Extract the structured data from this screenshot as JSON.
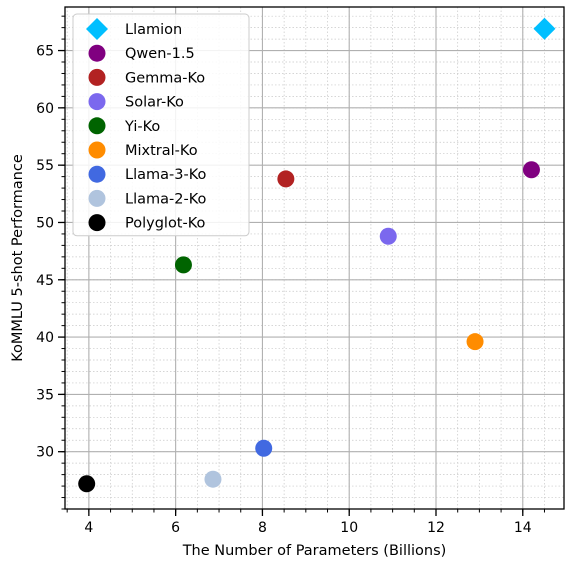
{
  "chart_data": {
    "type": "scatter",
    "title": "",
    "xlabel": "The Number of Parameters (Billions)",
    "ylabel": "KoMMLU 5-shot Performance",
    "xlim": [
      3.45,
      14.95
    ],
    "ylim": [
      25.0,
      68.8
    ],
    "x_ticks": [
      4,
      6,
      8,
      10,
      12,
      14
    ],
    "y_ticks": [
      30,
      35,
      40,
      45,
      50,
      55,
      60,
      65
    ],
    "grid": true,
    "legend_position": "top-left",
    "series": [
      {
        "name": "Llamion",
        "x": 14.5,
        "y": 66.9,
        "color": "#00bfff",
        "marker": "diamond"
      },
      {
        "name": "Qwen-1.5",
        "x": 14.2,
        "y": 54.6,
        "color": "#800080",
        "marker": "circle"
      },
      {
        "name": "Gemma-Ko",
        "x": 8.54,
        "y": 53.8,
        "color": "#b22222",
        "marker": "circle"
      },
      {
        "name": "Solar-Ko",
        "x": 10.9,
        "y": 48.8,
        "color": "#7b68ee",
        "marker": "circle"
      },
      {
        "name": "Yi-Ko",
        "x": 6.18,
        "y": 46.3,
        "color": "#006400",
        "marker": "circle"
      },
      {
        "name": "Mixtral-Ko",
        "x": 12.9,
        "y": 39.6,
        "color": "#ff8c00",
        "marker": "circle"
      },
      {
        "name": "Llama-3-Ko",
        "x": 8.03,
        "y": 30.3,
        "color": "#4169e1",
        "marker": "circle"
      },
      {
        "name": "Llama-2-Ko",
        "x": 6.86,
        "y": 27.6,
        "color": "#b0c4de",
        "marker": "circle"
      },
      {
        "name": "Polyglot-Ko",
        "x": 3.95,
        "y": 27.2,
        "color": "#000000",
        "marker": "circle"
      }
    ]
  }
}
